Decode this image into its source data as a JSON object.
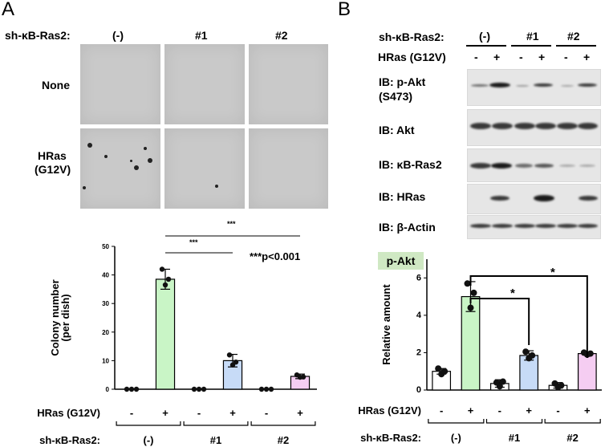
{
  "panel_a": {
    "letter": "A",
    "sh_label": "sh-κB-Ras2:",
    "columns": [
      "(-)",
      "#1",
      "#2"
    ],
    "rows": [
      {
        "label_lines": [
          "None"
        ]
      },
      {
        "label_lines": [
          "HRas",
          "(G12V)"
        ]
      }
    ],
    "sig_note": "***p<0.001",
    "sig_stars": [
      "***",
      "***"
    ]
  },
  "panel_b": {
    "letter": "B",
    "sh_label": "sh-κB-Ras2:",
    "groups": [
      "(-)",
      "#1",
      "#2"
    ],
    "hras_label": "HRas (G12V)",
    "signs": [
      "-",
      "+",
      "-",
      "+",
      "-",
      "+"
    ],
    "blots": [
      {
        "label_lines": [
          "IB: p-Akt",
          "(S473)"
        ]
      },
      {
        "label_lines": [
          "IB: Akt"
        ]
      },
      {
        "label_lines": [
          "IB: κB-Ras2"
        ]
      },
      {
        "label_lines": [
          "IB: HRas"
        ]
      },
      {
        "label_lines": [
          "IB: β-Actin"
        ]
      }
    ],
    "tag": "p-Akt",
    "tag_color": "#cfe8c3",
    "sig_stars": [
      "*",
      "*"
    ]
  },
  "chart_data": [
    {
      "type": "bar",
      "ylabel": "Colony number\n(per dish)",
      "ylim": [
        0,
        50
      ],
      "yticks": [
        0,
        10,
        20,
        30,
        40,
        50
      ],
      "row1_label": "HRas (G12V)",
      "row1_values": [
        "-",
        "+",
        "-",
        "+",
        "-",
        "+"
      ],
      "row2_label": "sh-κB-Ras2:",
      "row2_values": [
        "(-)",
        "#1",
        "#2"
      ],
      "values": [
        0,
        38.5,
        0,
        10,
        0,
        4.5
      ],
      "errors": [
        0,
        3.5,
        0,
        2.2,
        0,
        0.8
      ],
      "points": [
        [
          0,
          0,
          0
        ],
        [
          42,
          36.5,
          38.5
        ],
        [
          0,
          0,
          0
        ],
        [
          12,
          8.5,
          9.5
        ],
        [
          0,
          0,
          0
        ],
        [
          5,
          4.2,
          4.3
        ]
      ],
      "colors": [
        "#ffffff",
        "#c9f5c6",
        "#ffffff",
        "#c7dbf7",
        "#ffffff",
        "#f5cdf2"
      ]
    },
    {
      "type": "bar",
      "ylabel": "Relative amount",
      "ylim": [
        0,
        7
      ],
      "yticks": [
        0,
        2,
        4,
        6
      ],
      "row1_label": "HRas (G12V)",
      "row1_values": [
        "-",
        "+",
        "-",
        "+",
        "-",
        "+"
      ],
      "row2_label": "sh-κB-Ras2:",
      "row2_values": [
        "(-)",
        "#1",
        "#2"
      ],
      "values": [
        1.0,
        5.0,
        0.35,
        1.85,
        0.25,
        1.95
      ],
      "errors": [
        0.15,
        0.8,
        0.2,
        0.25,
        0.15,
        0.08
      ],
      "points": [
        [
          1.15,
          0.85,
          1.0
        ],
        [
          5.7,
          4.4,
          5.2
        ],
        [
          0.4,
          0.2,
          0.45
        ],
        [
          2.05,
          1.7,
          1.85
        ],
        [
          0.35,
          0.15,
          0.25
        ],
        [
          2.0,
          1.9,
          1.95
        ]
      ],
      "colors": [
        "#ffffff",
        "#c9f5c6",
        "#ffffff",
        "#c7dbf7",
        "#ffffff",
        "#f5cdf2"
      ]
    }
  ]
}
